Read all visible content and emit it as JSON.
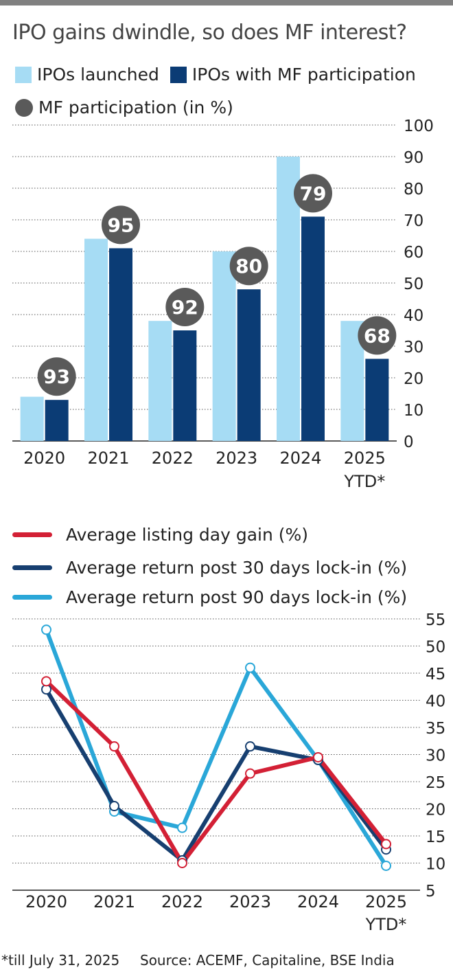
{
  "title": "IPO gains dwindle, so does MF interest?",
  "footnote": "*till July 31, 2025",
  "source": "Source: ACEMF, Capitaline, BSE India",
  "colors": {
    "launched": "#a6dcf4",
    "mf_participation": "#0b3c75",
    "pct_dot": "#5a5a5a",
    "listing_gain": "#d32035",
    "lock30": "#173f70",
    "lock90": "#2aa7d8",
    "topbar": "#808080"
  },
  "chart_data": [
    {
      "type": "bar",
      "categories": [
        "2020",
        "2021",
        "2022",
        "2023",
        "2024",
        "2025"
      ],
      "category_sublabels": [
        "",
        "",
        "",
        "",
        "",
        "YTD*"
      ],
      "ylim": [
        0,
        100
      ],
      "yticks": [
        "0",
        "10",
        "20",
        "30",
        "40",
        "50",
        "60",
        "70",
        "80",
        "90",
        "100"
      ],
      "grid": "dotted horizontal",
      "legend": {
        "launched": "IPOs launched",
        "mf": "IPOs with MF participation",
        "pct": "MF participation (in %)"
      },
      "series": [
        {
          "name": "IPOs launched",
          "values": [
            14,
            64,
            38,
            60,
            90,
            38
          ]
        },
        {
          "name": "IPOs with MF participation",
          "values": [
            13,
            61,
            35,
            48,
            71,
            26
          ]
        }
      ],
      "mf_participation_pct": [
        "93",
        "95",
        "92",
        "80",
        "79",
        "68"
      ]
    },
    {
      "type": "line",
      "categories": [
        "2020",
        "2021",
        "2022",
        "2023",
        "2024",
        "2025"
      ],
      "category_sublabels": [
        "",
        "",
        "",
        "",
        "",
        "YTD*"
      ],
      "ylim": [
        5,
        55
      ],
      "yticks": [
        "5",
        "10",
        "15",
        "20",
        "25",
        "30",
        "35",
        "40",
        "45",
        "50",
        "55"
      ],
      "grid": "dotted horizontal",
      "series": [
        {
          "name": "Average listing day gain (%)",
          "values": [
            43.5,
            31.5,
            10,
            26.5,
            29.5,
            13.5
          ]
        },
        {
          "name": "Average return post 30 days lock-in (%)",
          "values": [
            42,
            20.5,
            10.5,
            31.5,
            29,
            12.5
          ]
        },
        {
          "name": "Average return post 90 days lock-in (%)",
          "values": [
            53,
            19.5,
            16.5,
            46,
            29,
            9.5
          ]
        }
      ]
    }
  ]
}
